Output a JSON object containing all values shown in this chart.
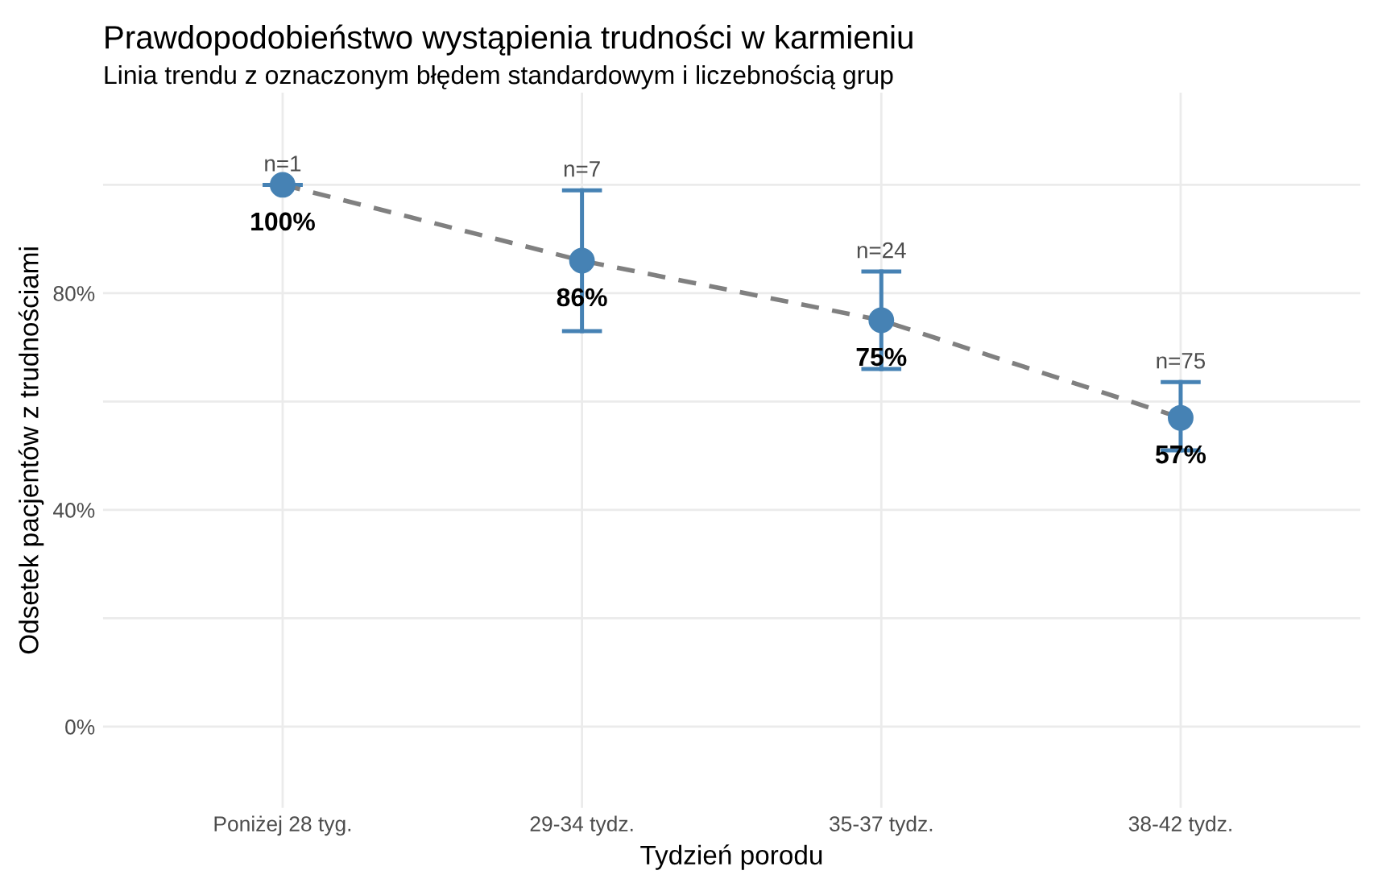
{
  "chart_data": {
    "type": "scatter",
    "title": "Prawdopodobieństwo wystąpienia trudności w karmieniu",
    "subtitle": "Linia trendu z oznaczonym błędem standardowym i liczebnością grup",
    "xlabel": "Tydzień porodu",
    "ylabel": "Odsetek pacjentów z trudnościami",
    "categories": [
      "Poniżej 28 tyg.",
      "29-34 tydz.",
      "35-37 tydz.",
      "38-42 tydz."
    ],
    "series": [
      {
        "type": "line",
        "color": "#808080",
        "line_style": "dashed",
        "values": [
          100,
          86,
          75,
          57
        ]
      },
      {
        "color": "#4682b4",
        "marker": "circle",
        "values": [
          100,
          86,
          75,
          57
        ],
        "errors": [
          [
            100,
            100
          ],
          [
            73,
            99
          ],
          [
            66,
            84
          ],
          [
            51,
            63.6
          ]
        ],
        "value_labels": [
          "100%",
          "86%",
          "75%",
          "57%"
        ]
      }
    ],
    "annotations": [
      "n=1",
      "n=7",
      "n=24",
      "n=75"
    ],
    "ylim": [
      -15,
      117
    ],
    "yticks": [
      {
        "value": 0,
        "label": "0%"
      },
      {
        "value": 20,
        "label": null
      },
      {
        "value": 40,
        "label": "40%"
      },
      {
        "value": 60,
        "label": null
      },
      {
        "value": 80,
        "label": "80%"
      },
      {
        "value": 100,
        "label": null
      }
    ],
    "grid": true,
    "legend": false
  }
}
